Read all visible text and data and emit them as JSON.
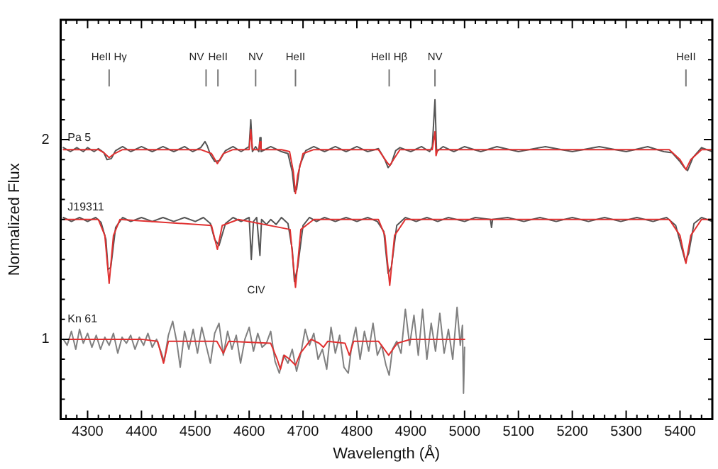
{
  "chart_data": {
    "type": "line",
    "xlabel": "Wavelength (Å)",
    "ylabel": "Normalized Flux",
    "xlim": [
      4250,
      5460
    ],
    "ylim": [
      0.6,
      2.6
    ],
    "xticks": [
      {
        "value": 4260,
        "label": null
      },
      {
        "value": 4280,
        "label": null
      },
      4300,
      {
        "value": 4320,
        "label": null
      },
      {
        "value": 4340,
        "label": null
      },
      {
        "value": 4360,
        "label": null
      },
      {
        "value": 4380,
        "label": null
      },
      4400,
      {
        "value": 4420,
        "label": null
      },
      {
        "value": 4440,
        "label": null
      },
      {
        "value": 4460,
        "label": null
      },
      {
        "value": 4480,
        "label": null
      },
      4500,
      {
        "value": 4520,
        "label": null
      },
      {
        "value": 4540,
        "label": null
      },
      {
        "value": 4560,
        "label": null
      },
      {
        "value": 4580,
        "label": null
      },
      4600,
      {
        "value": 4620,
        "label": null
      },
      {
        "value": 4640,
        "label": null
      },
      {
        "value": 4660,
        "label": null
      },
      {
        "value": 4680,
        "label": null
      },
      4700,
      {
        "value": 4720,
        "label": null
      },
      {
        "value": 4740,
        "label": null
      },
      {
        "value": 4760,
        "label": null
      },
      {
        "value": 4780,
        "label": null
      },
      4800,
      {
        "value": 4820,
        "label": null
      },
      {
        "value": 4840,
        "label": null
      },
      {
        "value": 4860,
        "label": null
      },
      {
        "value": 4880,
        "label": null
      },
      4900,
      {
        "value": 4920,
        "label": null
      },
      {
        "value": 4940,
        "label": null
      },
      {
        "value": 4960,
        "label": null
      },
      {
        "value": 4980,
        "label": null
      },
      5000,
      {
        "value": 5020,
        "label": null
      },
      {
        "value": 5040,
        "label": null
      },
      {
        "value": 5060,
        "label": null
      },
      {
        "value": 5080,
        "label": null
      },
      5100,
      {
        "value": 5120,
        "label": null
      },
      {
        "value": 5140,
        "label": null
      },
      {
        "value": 5160,
        "label": null
      },
      {
        "value": 5180,
        "label": null
      },
      5200,
      {
        "value": 5220,
        "label": null
      },
      {
        "value": 5240,
        "label": null
      },
      {
        "value": 5260,
        "label": null
      },
      {
        "value": 5280,
        "label": null
      },
      5300,
      {
        "value": 5320,
        "label": null
      },
      {
        "value": 5340,
        "label": null
      },
      {
        "value": 5360,
        "label": null
      },
      {
        "value": 5380,
        "label": null
      },
      5400,
      {
        "value": 5420,
        "label": null
      },
      {
        "value": 5440,
        "label": null
      }
    ],
    "yticks": [
      {
        "value": 0.7,
        "label": null
      },
      {
        "value": 0.8,
        "label": null
      },
      {
        "value": 0.9,
        "label": null
      },
      1,
      {
        "value": 1.1,
        "label": null
      },
      {
        "value": 1.2,
        "label": null
      },
      {
        "value": 1.3,
        "label": null
      },
      {
        "value": 1.4,
        "label": null
      },
      {
        "value": 1.5,
        "label": null
      },
      {
        "value": 1.6,
        "label": null
      },
      {
        "value": 1.7,
        "label": null
      },
      {
        "value": 1.8,
        "label": null
      },
      {
        "value": 1.9,
        "label": null
      },
      2,
      {
        "value": 2.1,
        "label": null
      },
      {
        "value": 2.2,
        "label": null
      },
      {
        "value": 2.3,
        "label": null
      },
      {
        "value": 2.4,
        "label": null
      },
      {
        "value": 2.5,
        "label": null
      }
    ],
    "grid": false,
    "legend": false,
    "marker": "none",
    "line_style": "solid",
    "series": [
      {
        "name": "Pa 5",
        "color": "#555555",
        "x": [
          4255,
          4268,
          4280,
          4292,
          4300,
          4312,
          4320,
          4330,
          4336,
          4344,
          4352,
          4365,
          4380,
          4400,
          4420,
          4440,
          4460,
          4480,
          4495,
          4510,
          4518,
          4522,
          4528,
          4536,
          4545,
          4556,
          4570,
          4585,
          4600,
          4603,
          4606,
          4612,
          4618,
          4620,
          4622,
          4640,
          4660,
          4672,
          4680,
          4684,
          4688,
          4694,
          4705,
          4720,
          4740,
          4760,
          4780,
          4800,
          4820,
          4840,
          4852,
          4858,
          4864,
          4872,
          4880,
          4900,
          4920,
          4935,
          4940,
          4945,
          4948,
          4960,
          4980,
          5000,
          5030,
          5060,
          5100,
          5150,
          5200,
          5250,
          5300,
          5340,
          5370,
          5385,
          5400,
          5408,
          5414,
          5424,
          5440,
          5460
        ],
        "values": [
          1.96,
          1.94,
          1.96,
          1.94,
          1.96,
          1.94,
          1.955,
          1.935,
          1.9,
          1.905,
          1.945,
          1.965,
          1.94,
          1.965,
          1.94,
          1.965,
          1.94,
          1.965,
          1.94,
          1.96,
          1.99,
          1.97,
          1.925,
          1.89,
          1.895,
          1.945,
          1.965,
          1.94,
          1.965,
          2.1,
          1.94,
          1.965,
          1.94,
          2.01,
          1.94,
          1.965,
          1.94,
          1.93,
          1.84,
          1.74,
          1.75,
          1.87,
          1.945,
          1.965,
          1.94,
          1.965,
          1.94,
          1.965,
          1.94,
          1.955,
          1.9,
          1.86,
          1.88,
          1.945,
          1.96,
          1.94,
          1.965,
          1.94,
          1.965,
          2.2,
          1.94,
          1.965,
          1.94,
          1.965,
          1.94,
          1.965,
          1.94,
          1.965,
          1.94,
          1.965,
          1.94,
          1.965,
          1.94,
          1.935,
          1.89,
          1.86,
          1.845,
          1.91,
          1.96,
          1.94
        ]
      },
      {
        "color": "#e03030",
        "x": [
          4255,
          4300,
          4320,
          4330,
          4340,
          4350,
          4365,
          4510,
          4530,
          4541,
          4552,
          4570,
          4600,
          4603,
          4606,
          4618,
          4620,
          4622,
          4660,
          4675,
          4682,
          4686,
          4690,
          4700,
          4720,
          4840,
          4855,
          4861,
          4868,
          4880,
          4940,
          4945,
          4947,
          4950,
          5380,
          5400,
          5411,
          5420,
          5440,
          5460
        ],
        "values": [
          1.95,
          1.95,
          1.95,
          1.935,
          1.91,
          1.93,
          1.95,
          1.95,
          1.93,
          1.88,
          1.93,
          1.95,
          1.95,
          2.05,
          1.95,
          1.95,
          1.99,
          1.95,
          1.95,
          1.94,
          1.84,
          1.73,
          1.82,
          1.93,
          1.95,
          1.95,
          1.89,
          1.87,
          1.9,
          1.95,
          1.95,
          2.04,
          1.92,
          1.95,
          1.95,
          1.9,
          1.85,
          1.9,
          1.95,
          1.95
        ]
      },
      {
        "name": "J19311",
        "color": "#555555",
        "x": [
          4255,
          4270,
          4285,
          4300,
          4315,
          4325,
          4334,
          4338,
          4343,
          4352,
          4365,
          4380,
          4400,
          4420,
          4440,
          4460,
          4480,
          4500,
          4515,
          4528,
          4536,
          4544,
          4556,
          4570,
          4585,
          4600,
          4604,
          4608,
          4614,
          4620,
          4623,
          4632,
          4640,
          4650,
          4660,
          4672,
          4680,
          4684,
          4690,
          4700,
          4712,
          4725,
          4740,
          4760,
          4780,
          4800,
          4820,
          4838,
          4850,
          4858,
          4864,
          4874,
          4890,
          4910,
          4930,
          4950,
          4970,
          5000,
          5020,
          5048,
          5050,
          5052,
          5080,
          5110,
          5140,
          5170,
          5200,
          5230,
          5260,
          5290,
          5320,
          5350,
          5375,
          5392,
          5405,
          5410,
          5416,
          5426,
          5440,
          5460
        ],
        "values": [
          1.61,
          1.59,
          1.61,
          1.59,
          1.61,
          1.585,
          1.5,
          1.35,
          1.36,
          1.56,
          1.61,
          1.59,
          1.61,
          1.59,
          1.61,
          1.59,
          1.61,
          1.59,
          1.61,
          1.58,
          1.5,
          1.47,
          1.58,
          1.61,
          1.59,
          1.61,
          1.4,
          1.59,
          1.61,
          1.42,
          1.6,
          1.575,
          1.6,
          1.575,
          1.61,
          1.58,
          1.45,
          1.29,
          1.36,
          1.57,
          1.61,
          1.59,
          1.61,
          1.59,
          1.61,
          1.59,
          1.61,
          1.59,
          1.54,
          1.33,
          1.36,
          1.57,
          1.61,
          1.59,
          1.61,
          1.59,
          1.61,
          1.59,
          1.61,
          1.6,
          1.56,
          1.6,
          1.61,
          1.59,
          1.61,
          1.59,
          1.61,
          1.59,
          1.61,
          1.59,
          1.61,
          1.59,
          1.61,
          1.57,
          1.44,
          1.39,
          1.43,
          1.58,
          1.61,
          1.59
        ]
      },
      {
        "color": "#e03030",
        "x": [
          4255,
          4320,
          4332,
          4340,
          4348,
          4360,
          4530,
          4541,
          4550,
          4580,
          4676,
          4686,
          4696,
          4720,
          4840,
          4852,
          4861,
          4870,
          4890,
          5380,
          5400,
          5411,
          5420,
          5440,
          5460
        ],
        "values": [
          1.6,
          1.6,
          1.52,
          1.28,
          1.52,
          1.6,
          1.57,
          1.45,
          1.57,
          1.6,
          1.55,
          1.26,
          1.55,
          1.6,
          1.6,
          1.52,
          1.27,
          1.52,
          1.6,
          1.6,
          1.52,
          1.38,
          1.52,
          1.6,
          1.6
        ]
      },
      {
        "name": "Kn 61",
        "color": "#808080",
        "x": [
          4255,
          4262,
          4270,
          4278,
          4285,
          4292,
          4300,
          4308,
          4316,
          4324,
          4332,
          4340,
          4348,
          4356,
          4364,
          4372,
          4380,
          4388,
          4396,
          4404,
          4412,
          4420,
          4428,
          4436,
          4442,
          4450,
          4458,
          4466,
          4472,
          4480,
          4488,
          4496,
          4504,
          4512,
          4520,
          4528,
          4536,
          4544,
          4552,
          4560,
          4568,
          4576,
          4584,
          4592,
          4600,
          4608,
          4616,
          4624,
          4632,
          4640,
          4648,
          4656,
          4664,
          4672,
          4680,
          4688,
          4696,
          4704,
          4712,
          4720,
          4728,
          4736,
          4744,
          4752,
          4760,
          4768,
          4776,
          4784,
          4790,
          4798,
          4806,
          4814,
          4822,
          4830,
          4838,
          4846,
          4854,
          4860,
          4866,
          4874,
          4882,
          4890,
          4898,
          4906,
          4914,
          4922,
          4930,
          4938,
          4946,
          4954,
          4962,
          4970,
          4978,
          4986,
          4992,
          4996,
          4998,
          5000
        ],
        "values": [
          1.0,
          0.97,
          1.04,
          0.95,
          1.05,
          0.98,
          1.03,
          0.96,
          1.02,
          0.95,
          1.01,
          0.97,
          1.03,
          0.93,
          1.01,
          0.98,
          1.02,
          0.95,
          1.01,
          0.97,
          1.03,
          0.96,
          1.0,
          0.94,
          0.89,
          1.02,
          1.09,
          0.98,
          0.86,
          1.04,
          0.95,
          1.05,
          0.93,
          1.06,
          0.97,
          0.88,
          1.03,
          1.08,
          0.92,
          1.04,
          0.95,
          1.02,
          0.88,
          1.0,
          1.06,
          0.94,
          1.03,
          0.96,
          0.98,
          1.04,
          0.89,
          0.83,
          0.92,
          0.88,
          0.95,
          0.84,
          0.93,
          1.05,
          0.97,
          1.03,
          0.9,
          0.95,
          0.85,
          1.06,
          0.93,
          1.02,
          0.86,
          0.83,
          0.96,
          1.06,
          0.9,
          1.04,
          0.94,
          1.08,
          0.92,
          0.97,
          0.87,
          0.82,
          0.95,
          0.99,
          0.93,
          1.15,
          0.97,
          1.12,
          0.92,
          1.15,
          0.9,
          1.08,
          0.94,
          1.13,
          0.93,
          1.05,
          0.9,
          1.16,
          0.97,
          1.07,
          0.73,
          0.96
        ]
      },
      {
        "color": "#e03030",
        "x": [
          4255,
          4400,
          4430,
          4441,
          4450,
          4540,
          4552,
          4562,
          4640,
          4652,
          4658,
          4665,
          4675,
          4686,
          4695,
          4715,
          4730,
          4738,
          4746,
          4778,
          4786,
          4794,
          4840,
          4859,
          4875,
          4900,
          5000
        ],
        "values": [
          1.0,
          1.0,
          0.99,
          0.88,
          0.99,
          0.99,
          0.93,
          0.99,
          0.98,
          0.9,
          0.85,
          0.92,
          0.9,
          0.87,
          0.93,
          1.0,
          0.98,
          0.96,
          0.99,
          0.98,
          0.92,
          0.99,
          0.99,
          0.92,
          0.98,
          1.0,
          1.0
        ]
      }
    ],
    "ref_lines": [
      {
        "axis": "x",
        "value": 4340,
        "label": "HeII Hγ"
      },
      {
        "axis": "x",
        "value": 4520,
        "label": "NV"
      },
      {
        "axis": "x",
        "value": 4542,
        "label": "HeII"
      },
      {
        "axis": "x",
        "value": 4612,
        "label": "NV"
      },
      {
        "axis": "x",
        "value": 4686,
        "label": "HeII"
      },
      {
        "axis": "x",
        "value": 4860,
        "label": "HeII Hβ"
      },
      {
        "axis": "x",
        "value": 4945,
        "label": "NV"
      },
      {
        "axis": "x",
        "value": 5411,
        "label": "HeII"
      }
    ],
    "annotations": [
      "CIV"
    ]
  }
}
